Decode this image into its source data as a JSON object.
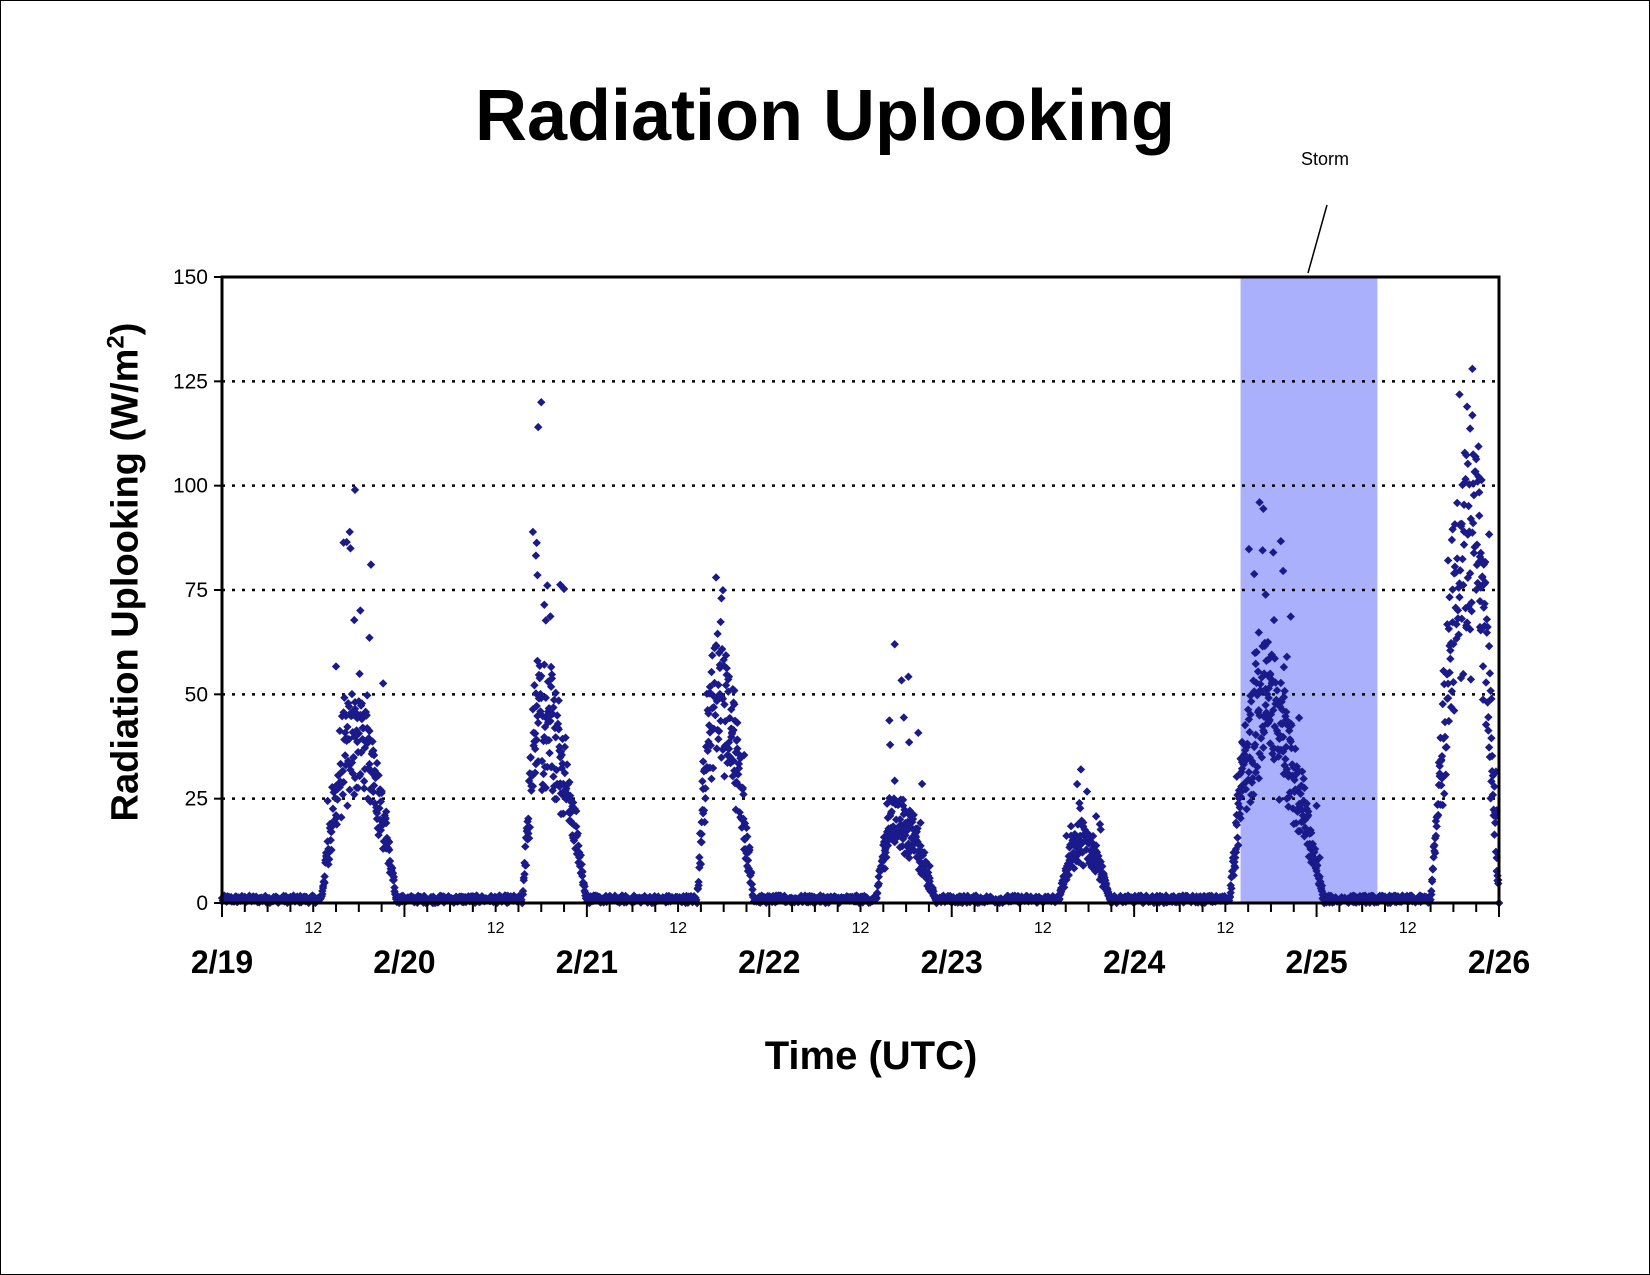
{
  "chart_data": {
    "type": "scatter",
    "title": "Radiation Uplooking",
    "xlabel": "Time (UTC)",
    "ylabel": "Radiation Uplooking (W/m",
    "ylabel_superscript": "2",
    "ylabel_close": ")",
    "ylim": [
      0,
      150
    ],
    "yticks": [
      0,
      25,
      50,
      75,
      100,
      125,
      150
    ],
    "xlim": [
      "2/19 00:00",
      "2/26 00:00"
    ],
    "x_major_ticks": [
      "2/19",
      "2/20",
      "2/21",
      "2/22",
      "2/23",
      "2/24",
      "2/25",
      "2/26"
    ],
    "x_minor_tick_label": "12",
    "x_minor_tick_interval_hours": 3,
    "grid": {
      "horizontal_dotted": true,
      "vertical": false
    },
    "annotation": {
      "text": "Storm",
      "shaded_span": [
        "2/24 14:00",
        "2/25 08:00"
      ],
      "shade_color": "#aab0fb"
    },
    "marker": "diamond",
    "marker_color": "#1a1a8a",
    "series": [
      {
        "events": [
          {
            "start": "2/19 13:00",
            "end": "2/19 23:00",
            "peak_time": "2/19 17:30",
            "typical": 40,
            "max": 99
          },
          {
            "start": "2/20 15:30",
            "end": "2/21 00:00",
            "peak_time": "2/20 18:00",
            "typical": 45,
            "max": 120
          },
          {
            "start": "2/21 14:30",
            "end": "2/21 22:00",
            "peak_time": "2/21 17:00",
            "typical": 50,
            "max": 78
          },
          {
            "start": "2/22 14:00",
            "end": "2/22 22:00",
            "peak_time": "2/22 16:30",
            "typical": 20,
            "max": 62
          },
          {
            "start": "2/23 14:00",
            "end": "2/23 21:00",
            "peak_time": "2/23 17:00",
            "typical": 15,
            "max": 32
          },
          {
            "start": "2/24 12:30",
            "end": "2/25 01:00",
            "peak_time": "2/24 16:30",
            "typical": 45,
            "max": 96
          },
          {
            "start": "2/25 15:00",
            "end": "2/26 00:00",
            "peak_time": "2/25 20:30",
            "typical": 88,
            "max": 128
          }
        ]
      }
    ]
  }
}
